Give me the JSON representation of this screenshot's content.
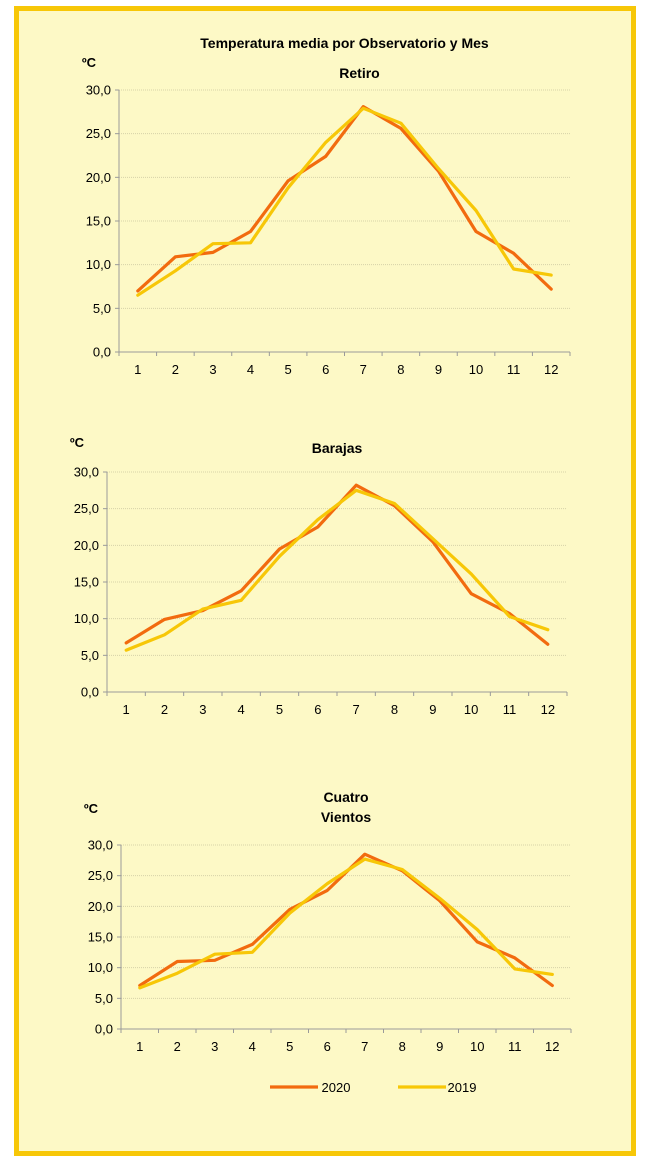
{
  "colors": {
    "frame_border": "#f7c707",
    "background": "#fdf9c6",
    "series_2020": "#f26b0f",
    "series_2019": "#f7c707",
    "gridline": "#d6d2a8"
  },
  "legend": {
    "placement": "bottom-center"
  },
  "chart_data": [
    {
      "type": "line",
      "title": "Temperatura media por Observatorio y Mes",
      "subtitle": "Retiro",
      "ylabel": "ºC",
      "ylim": [
        0,
        30
      ],
      "yticks": [
        "0,0",
        "5,0",
        "10,0",
        "15,0",
        "20,0",
        "25,0",
        "30,0"
      ],
      "categories": [
        "1",
        "2",
        "3",
        "4",
        "5",
        "6",
        "7",
        "8",
        "9",
        "10",
        "11",
        "12"
      ],
      "grid": true,
      "series": [
        {
          "name": "2020",
          "values": [
            7.0,
            10.9,
            11.4,
            13.8,
            19.6,
            22.4,
            28.1,
            25.6,
            20.7,
            13.8,
            11.3,
            7.2
          ]
        },
        {
          "name": "2019",
          "values": [
            6.5,
            9.3,
            12.4,
            12.5,
            18.8,
            24.0,
            27.9,
            26.2,
            21.0,
            16.2,
            9.5,
            8.8
          ]
        }
      ]
    },
    {
      "type": "line",
      "title": "Barajas",
      "ylabel": "ºC",
      "ylim": [
        0,
        30
      ],
      "yticks": [
        "0,0",
        "5,0",
        "10,0",
        "15,0",
        "20,0",
        "25,0",
        "30,0"
      ],
      "categories": [
        "1",
        "2",
        "3",
        "4",
        "5",
        "6",
        "7",
        "8",
        "9",
        "10",
        "11",
        "12"
      ],
      "grid": true,
      "series": [
        {
          "name": "2020",
          "values": [
            6.7,
            9.9,
            11.1,
            13.8,
            19.5,
            22.5,
            28.2,
            25.4,
            20.5,
            13.4,
            10.7,
            6.5
          ]
        },
        {
          "name": "2019",
          "values": [
            5.7,
            7.8,
            11.3,
            12.5,
            18.5,
            23.5,
            27.5,
            25.7,
            20.9,
            16.1,
            10.3,
            8.5
          ]
        }
      ]
    },
    {
      "type": "line",
      "title_lines": [
        "Cuatro",
        "Vientos"
      ],
      "ylabel": "ºC",
      "ylim": [
        0,
        30
      ],
      "yticks": [
        "0,0",
        "5,0",
        "10,0",
        "15,0",
        "20,0",
        "25,0",
        "30,0"
      ],
      "categories": [
        "1",
        "2",
        "3",
        "4",
        "5",
        "6",
        "7",
        "8",
        "9",
        "10",
        "11",
        "12"
      ],
      "grid": true,
      "series": [
        {
          "name": "2020",
          "values": [
            7.1,
            11.0,
            11.2,
            13.8,
            19.5,
            22.6,
            28.5,
            25.8,
            20.9,
            14.2,
            11.6,
            7.1
          ]
        },
        {
          "name": "2019",
          "values": [
            6.7,
            9.1,
            12.2,
            12.5,
            18.9,
            23.7,
            27.7,
            26.0,
            21.3,
            16.2,
            9.8,
            8.9
          ]
        }
      ]
    }
  ]
}
